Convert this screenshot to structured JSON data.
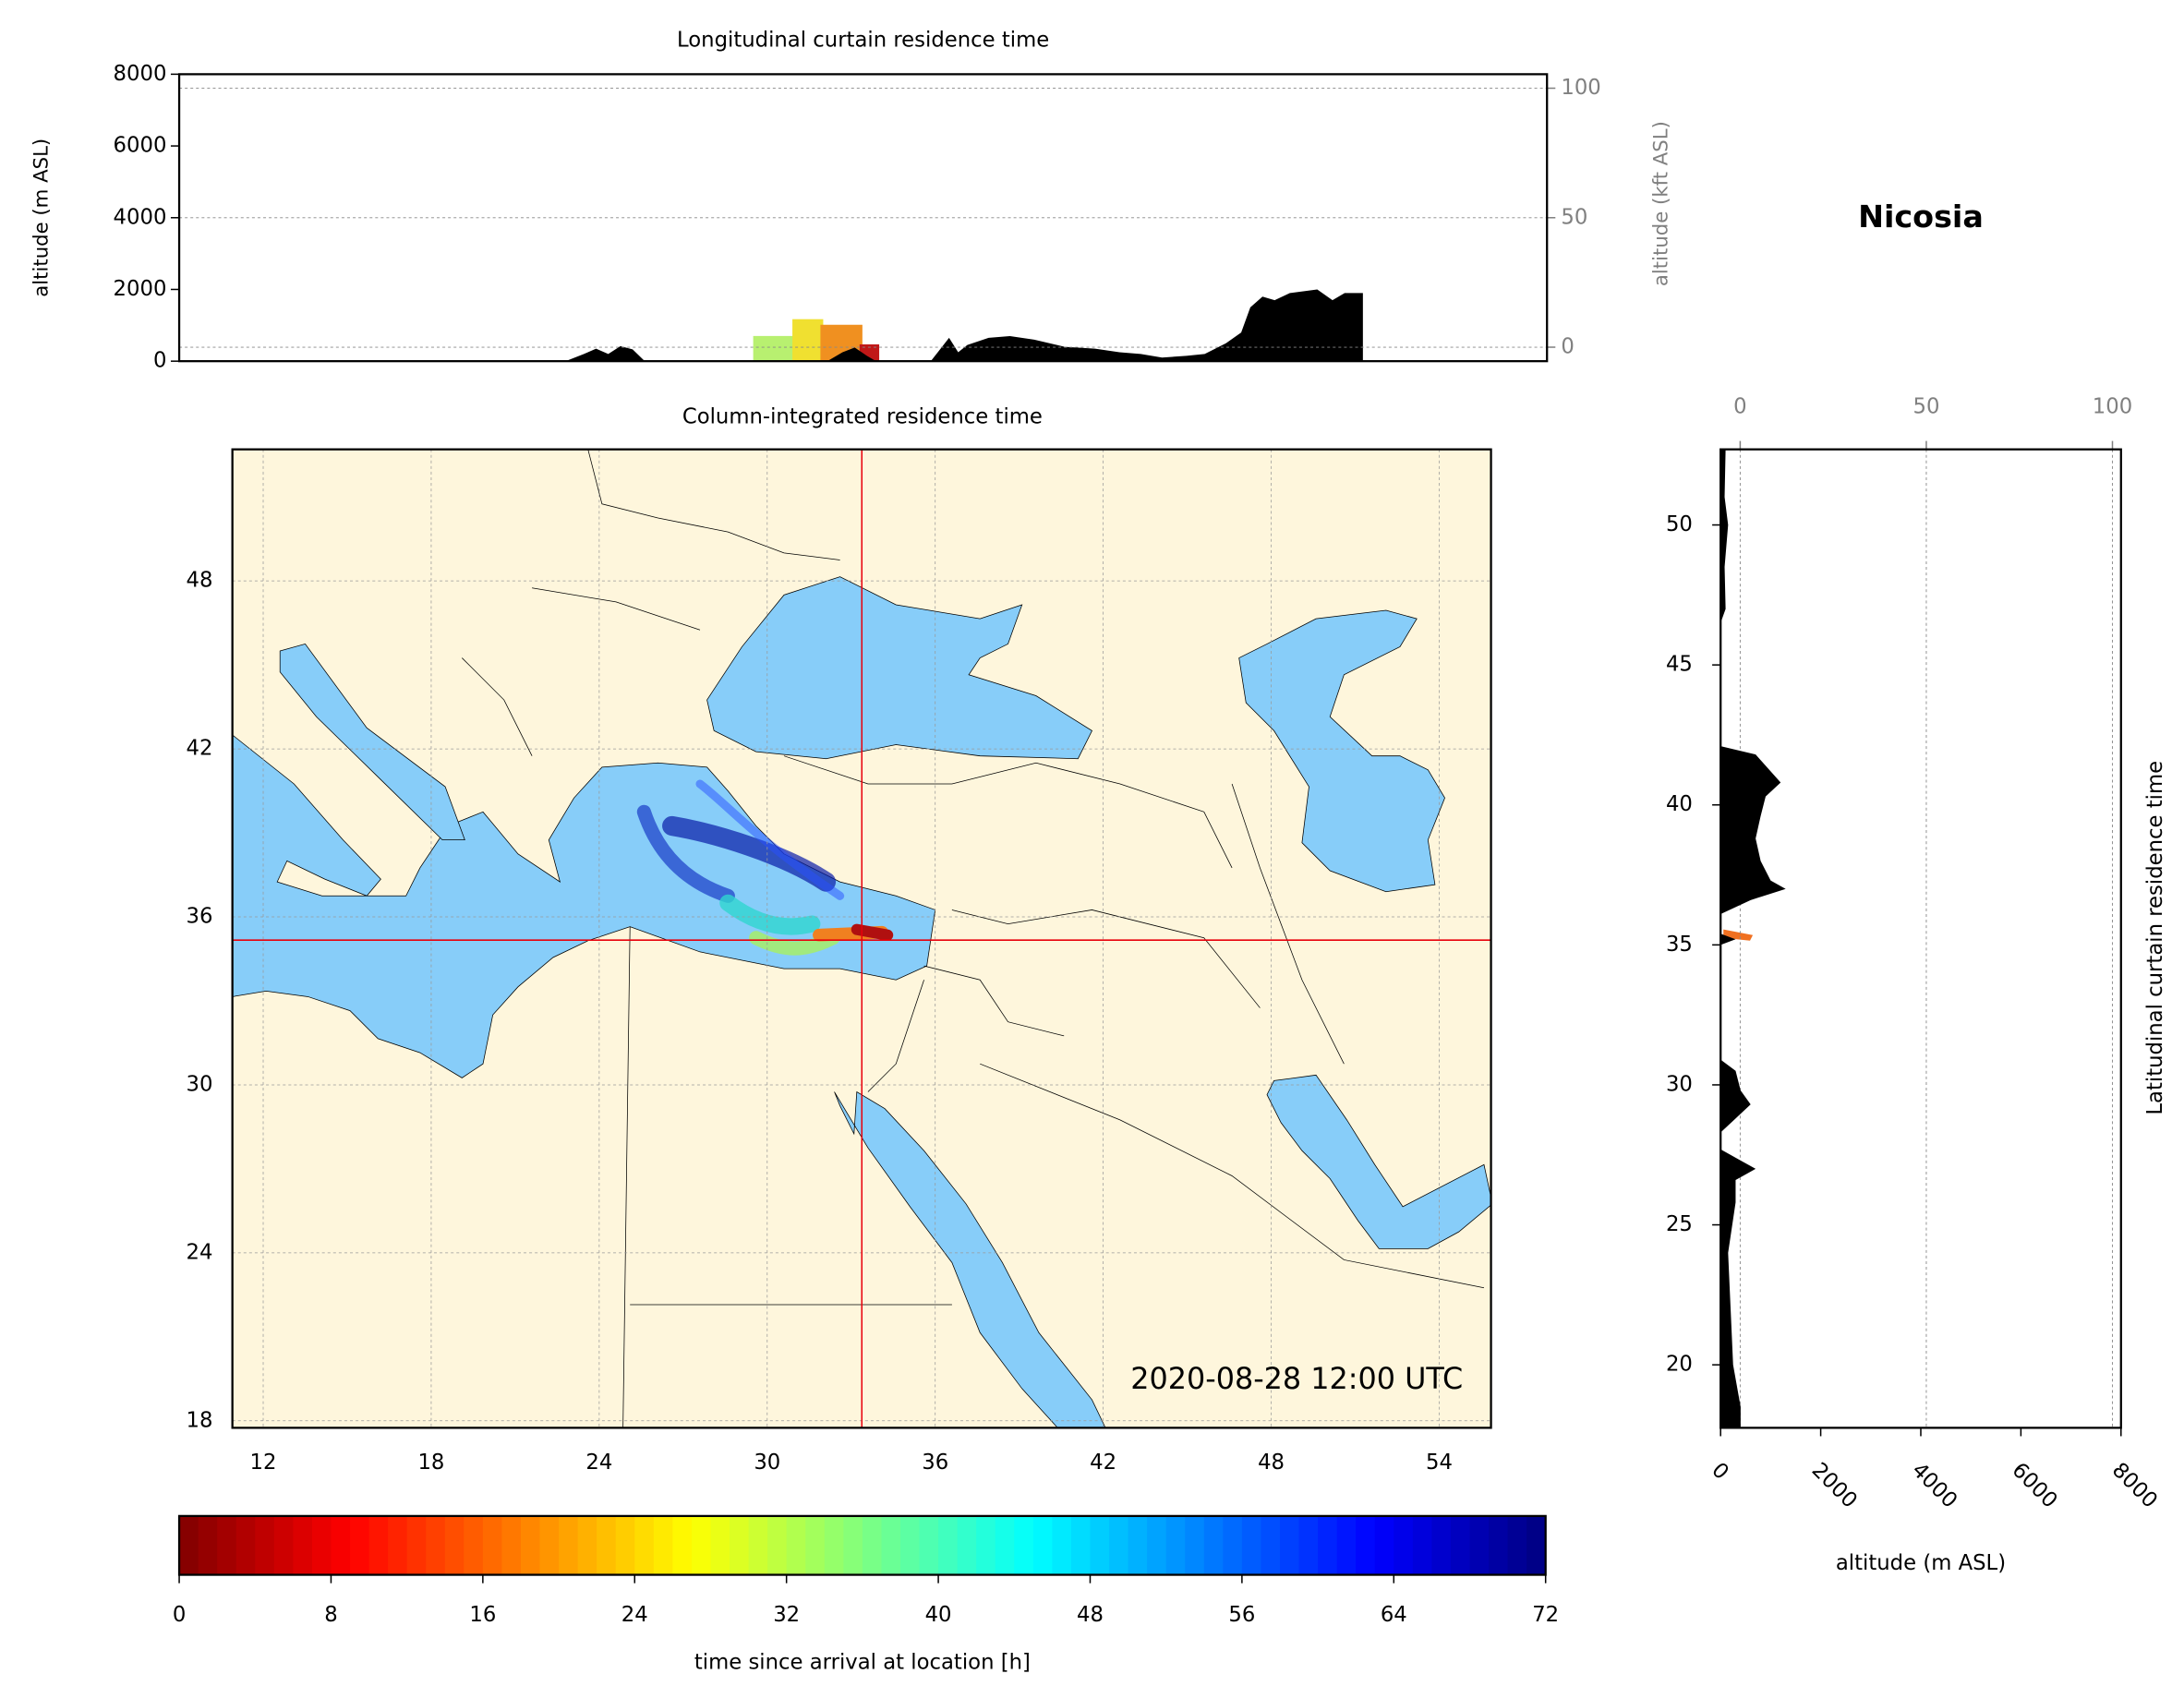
{
  "site_title": "Nicosia",
  "chart_data": [
    {
      "type": "area",
      "title": "Longitudinal curtain residence time",
      "ylabel": "altitude (m ASL)",
      "y2label": "altitude (kft ASL)",
      "xlim": [
        10.9,
        55.85
      ],
      "ylim": [
        0,
        8000
      ],
      "yticks": [
        0,
        2000,
        4000,
        6000,
        8000
      ],
      "y2lim": [
        -5.4,
        105.4
      ],
      "y2ticks": [
        0,
        50,
        100
      ],
      "grid": true,
      "series": [
        {
          "color": "#000000",
          "x": [
            23.6,
            24.2,
            24.6,
            25.0,
            25.4,
            25.8,
            26.2,
            32.2,
            32.7,
            33.1,
            33.5,
            33.8,
            35.6,
            36.2,
            36.5,
            36.8,
            37.5,
            38.2,
            39.0,
            40.0,
            41.0,
            41.8,
            42.5,
            43.2,
            44.0,
            44.6,
            45.3,
            45.8,
            46.1,
            46.5,
            46.9,
            47.4,
            48.3,
            48.8,
            49.2,
            49.8,
            49.8
          ],
          "values": [
            0,
            200,
            350,
            200,
            420,
            330,
            0,
            0,
            250,
            380,
            150,
            0,
            0,
            650,
            250,
            450,
            650,
            700,
            600,
            400,
            350,
            250,
            200,
            100,
            150,
            200,
            500,
            800,
            1500,
            1800,
            1700,
            1900,
            2000,
            1700,
            1900,
            1900,
            0
          ]
        }
      ]
    },
    {
      "type": "map",
      "title": "Column-integrated residence time",
      "annotation": "2020-08-28 12:00 UTC",
      "xlim": [
        10.9,
        55.85
      ],
      "ylim": [
        17.75,
        52.7
      ],
      "xticks": [
        12,
        18,
        24,
        30,
        36,
        42,
        48,
        54
      ],
      "yticks": [
        18,
        24,
        30,
        36,
        42,
        48
      ],
      "marker": {
        "lon": 33.38,
        "lat": 35.17,
        "color": "#e8000b"
      },
      "land_color": "#fef6dc",
      "sea_color": "#87cdf9",
      "grid": true
    },
    {
      "type": "area-h",
      "xlabel": "altitude (m ASL)",
      "ylabel": "Latitudinal curtain residence time",
      "xlim": [
        0,
        8000
      ],
      "xticks": [
        0,
        2000,
        4000,
        6000,
        8000
      ],
      "x2lim": [
        -5.26,
        102.3
      ],
      "x2ticks": [
        0,
        50,
        100
      ],
      "ylim": [
        17.75,
        52.7
      ],
      "yticks": [
        20,
        25,
        30,
        35,
        40,
        45,
        50
      ],
      "grid": true,
      "series": [
        {
          "color": "#000000",
          "y": [
            52.7,
            51,
            50,
            48.5,
            47,
            46.5,
            42.1,
            41.8,
            41.2,
            40.8,
            40.3,
            39.6,
            38.8,
            38,
            37.3,
            37,
            36.6,
            36.1,
            35.4,
            35.2,
            35.0,
            30.9,
            30.5,
            29.8,
            29.3,
            28.8,
            28.3,
            27.7,
            27.3,
            27,
            26.6,
            25.8,
            24,
            22,
            20,
            18.5,
            17.75
          ],
          "values": [
            100,
            80,
            150,
            80,
            100,
            0,
            0,
            700,
            1000,
            1200,
            900,
            800,
            700,
            800,
            1000,
            1300,
            600,
            0,
            0,
            300,
            0,
            0,
            300,
            400,
            600,
            300,
            0,
            0,
            400,
            700,
            300,
            300,
            150,
            200,
            250,
            400,
            400
          ]
        }
      ]
    },
    {
      "type": "colorbar",
      "label": "time since arrival at location [h]",
      "lim": [
        0,
        72
      ],
      "ticks": [
        0,
        8,
        16,
        24,
        32,
        40,
        48,
        56,
        64,
        72
      ],
      "colormap": "jet_r"
    }
  ]
}
